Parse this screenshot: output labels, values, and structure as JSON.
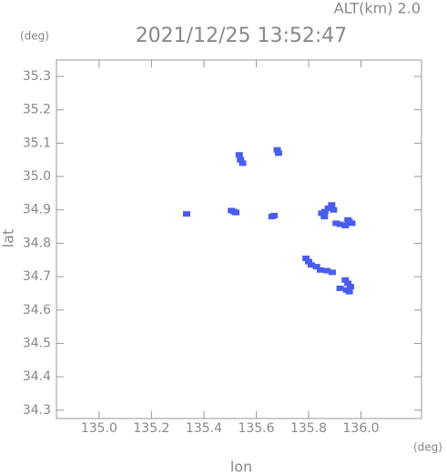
{
  "chart_data": {
    "type": "scatter",
    "title": "2021/12/25 13:52:47",
    "subtitle": "ALT(km) 2.0",
    "x_label": "lon",
    "y_label": "lat",
    "x_unit": "(deg)",
    "y_unit": "(deg)",
    "color": "#4a5cf0",
    "x": [
      135.535,
      135.54,
      135.548,
      135.68,
      135.685,
      135.505,
      135.515,
      135.522,
      135.334,
      135.66,
      135.668,
      135.85,
      135.862,
      135.875,
      135.888,
      135.895,
      135.86,
      135.905,
      135.92,
      135.94,
      135.955,
      135.965,
      135.95,
      135.79,
      135.8,
      135.81,
      135.83,
      135.845,
      135.87,
      135.89,
      135.94,
      135.95,
      135.96,
      135.945,
      135.955,
      135.92
    ],
    "values": [
      35.065,
      35.05,
      35.04,
      35.08,
      35.07,
      34.898,
      34.895,
      34.892,
      34.888,
      34.88,
      34.883,
      34.89,
      34.895,
      34.905,
      34.915,
      34.9,
      34.88,
      34.86,
      34.857,
      34.853,
      34.865,
      34.86,
      34.87,
      34.755,
      34.745,
      34.735,
      34.73,
      34.72,
      34.718,
      34.713,
      34.69,
      34.68,
      34.67,
      34.66,
      34.655,
      34.665
    ],
    "xlim": [
      134.837,
      136.231
    ],
    "ylim": [
      34.275,
      35.349
    ],
    "xticks": [
      {
        "value": 135.0,
        "label": "135.0"
      },
      135.2,
      135.4,
      135.6,
      135.8,
      {
        "value": 136.0,
        "label": "136.0"
      }
    ],
    "yticks": [
      34.3,
      34.4,
      34.5,
      34.6,
      34.7,
      34.8,
      34.9,
      {
        "value": 35.0,
        "label": "35.0"
      },
      35.1,
      35.2,
      35.3
    ]
  }
}
